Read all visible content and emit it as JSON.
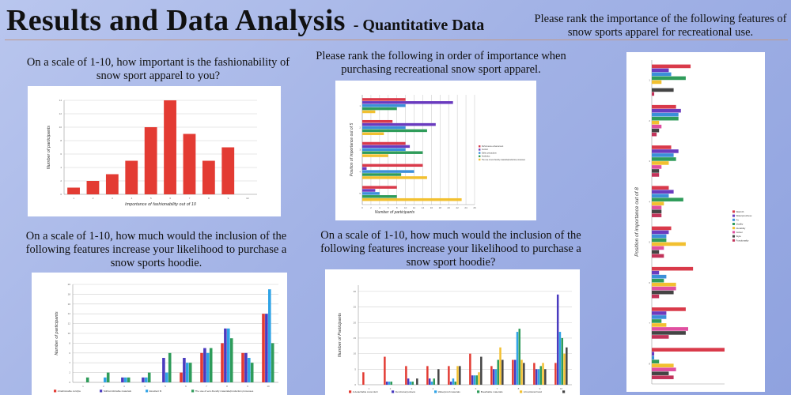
{
  "header": {
    "title": "Results and Data Analysis",
    "subtitle": "- Quantitative Data"
  },
  "questions": {
    "q1": "On a scale of 1-10, how important is the fashionability of snow sport apparel to you?",
    "q2": "Please rank the following in order of importance when purchasing recreational snow sport apparel.",
    "q3": "Please rank the importance of the following features of snow sports apparel for recreational use.",
    "q4": "On a scale of 1-10, how much would the inclusion of the following features increase your likelihood to purchase a snow sports hoodie.",
    "q5": "On a scale of 1-10, how much would the inclusion of the following features increase your likelihood to purchase a snow sport hoodie?"
  },
  "chart_data": [
    {
      "id": "fashion",
      "type": "bar",
      "xlabel": "Importance of fashionability out of 10",
      "ylabel": "Number of participants",
      "categories": [
        "1",
        "2",
        "3",
        "4",
        "5",
        "6",
        "7",
        "8",
        "9",
        "10"
      ],
      "yticks": [
        "0",
        "2",
        "4",
        "6",
        "8",
        "10",
        "12",
        "14"
      ],
      "ylim": [
        0,
        14
      ],
      "values": [
        1,
        2,
        3,
        5,
        10,
        14,
        9,
        5,
        7,
        0
      ],
      "color": "#e33b33"
    },
    {
      "id": "purchase-rank",
      "type": "bar",
      "orientation": "horizontal",
      "xlabel": "Number of participants",
      "ylabel": "Position of importance out of 5",
      "categories": [
        "1",
        "2",
        "3",
        "4",
        "5"
      ],
      "xticks": [
        "0",
        "2",
        "4",
        "6",
        "8",
        "10",
        "12",
        "14",
        "16",
        "18",
        "20",
        "22",
        "24",
        "26"
      ],
      "xlim": [
        0,
        26
      ],
      "series": [
        {
          "name": "Performance enhancement",
          "color": "#d93a4a",
          "values": [
            10,
            7,
            10,
            14,
            8
          ]
        },
        {
          "name": "Comfort",
          "color": "#6a3bbf",
          "values": [
            21,
            17,
            11,
            1,
            3
          ]
        },
        {
          "name": "Safety precautions",
          "color": "#3b8fd9",
          "values": [
            10,
            10,
            10,
            12,
            4
          ]
        },
        {
          "name": "Aesthetics",
          "color": "#2f9c5a",
          "values": [
            8,
            15,
            14,
            9,
            8
          ]
        },
        {
          "name": "The use of eco-friendly materials/production processes",
          "color": "#f2c030",
          "values": [
            3,
            5,
            6,
            15,
            23
          ]
        }
      ]
    },
    {
      "id": "features-rank",
      "type": "bar",
      "orientation": "horizontal",
      "ylabel": "Position of importance out of 8",
      "categories": [
        "1",
        "2",
        "3",
        "4",
        "5",
        "6",
        "7",
        "8"
      ],
      "xlim": [
        0,
        30
      ],
      "series": [
        {
          "name": "Warmth",
          "color": "#d93a4a",
          "values": [
            16,
            10,
            8,
            7,
            8,
            17,
            14,
            30
          ]
        },
        {
          "name": "Waterproofness",
          "color": "#6a3bbf",
          "values": [
            7,
            12,
            11,
            9,
            7,
            3,
            6,
            1
          ]
        },
        {
          "name": "Fit",
          "color": "#3b8fd9",
          "values": [
            8,
            11,
            9,
            7,
            6,
            6,
            6,
            1
          ]
        },
        {
          "name": "Quality",
          "color": "#2f9c5a",
          "values": [
            14,
            11,
            10,
            13,
            6,
            5,
            4,
            3
          ]
        },
        {
          "name": "Durability",
          "color": "#f2c030",
          "values": [
            4,
            3,
            7,
            5,
            14,
            10,
            6,
            9
          ]
        },
        {
          "name": "Colour",
          "color": "#e04fa0",
          "values": [
            0,
            4,
            4,
            4,
            5,
            10,
            15,
            10
          ]
        },
        {
          "name": "Style",
          "color": "#444444",
          "values": [
            9,
            3,
            3,
            4,
            3,
            9,
            14,
            7
          ]
        },
        {
          "name": "Functionality",
          "color": "#c2335a",
          "values": [
            1,
            2,
            3,
            4,
            5,
            3,
            7,
            9
          ]
        }
      ]
    },
    {
      "id": "hoodie-1",
      "type": "bar",
      "ylabel": "Number of participants",
      "categories": [
        "1",
        "2",
        "3",
        "4",
        "5",
        "6",
        "7",
        "8",
        "9",
        "10"
      ],
      "yticks": [
        "0",
        "2",
        "4",
        "6",
        "8",
        "10",
        "12",
        "14",
        "16",
        "18",
        "20"
      ],
      "ylim": [
        0,
        20
      ],
      "series": [
        {
          "name": "A fashionable curvlyle",
          "color": "#e33b33",
          "values": [
            0,
            0,
            0,
            0,
            0,
            2,
            6,
            8,
            6,
            14
          ]
        },
        {
          "name": "Soft/comfortable materials",
          "color": "#4a3bbf",
          "values": [
            0,
            0,
            1,
            1,
            5,
            5,
            7,
            11,
            6,
            14
          ]
        },
        {
          "name": "Excellent fit",
          "color": "#2fa3e6",
          "values": [
            0,
            1,
            1,
            1,
            2,
            4,
            6,
            11,
            5,
            19
          ]
        },
        {
          "name": "The use of eco-friendly materials/production processes",
          "color": "#2f9c5a",
          "values": [
            1,
            2,
            1,
            2,
            6,
            4,
            7,
            9,
            4,
            8
          ]
        }
      ]
    },
    {
      "id": "hoodie-2",
      "type": "bar",
      "ylabel": "Number of Participants",
      "categories": [
        "1",
        "2",
        "3",
        "4",
        "5",
        "6",
        "7",
        "8",
        "9",
        "10"
      ],
      "yticks": [
        "0",
        "5",
        "10",
        "15",
        "20",
        "25",
        "30"
      ],
      "ylim": [
        0,
        32
      ],
      "series": [
        {
          "name": "A detachable snow skirt",
          "color": "#e33b33",
          "values": [
            4,
            9,
            6,
            6,
            6,
            10,
            6,
            8,
            7,
            7
          ]
        },
        {
          "name": "Functional pockets",
          "color": "#4a3bbf",
          "values": [
            0,
            1,
            2,
            2,
            1,
            3,
            5,
            8,
            5,
            29
          ]
        },
        {
          "name": "Waterproof materials",
          "color": "#2fa3e6",
          "values": [
            0,
            1,
            1,
            1,
            2,
            3,
            5,
            17,
            5,
            17
          ]
        },
        {
          "name": "Breathable materials",
          "color": "#2f9c5a",
          "values": [
            0,
            1,
            1,
            2,
            1,
            3,
            8,
            18,
            6,
            15
          ]
        },
        {
          "name": "A functional hood",
          "color": "#f2c030",
          "values": [
            0,
            0,
            0,
            0,
            6,
            4,
            12,
            8,
            7,
            10
          ]
        },
        {
          "name": "",
          "color": "#444444",
          "values": [
            0,
            0,
            2,
            5,
            6,
            9,
            8,
            7,
            5,
            12
          ]
        }
      ]
    }
  ]
}
